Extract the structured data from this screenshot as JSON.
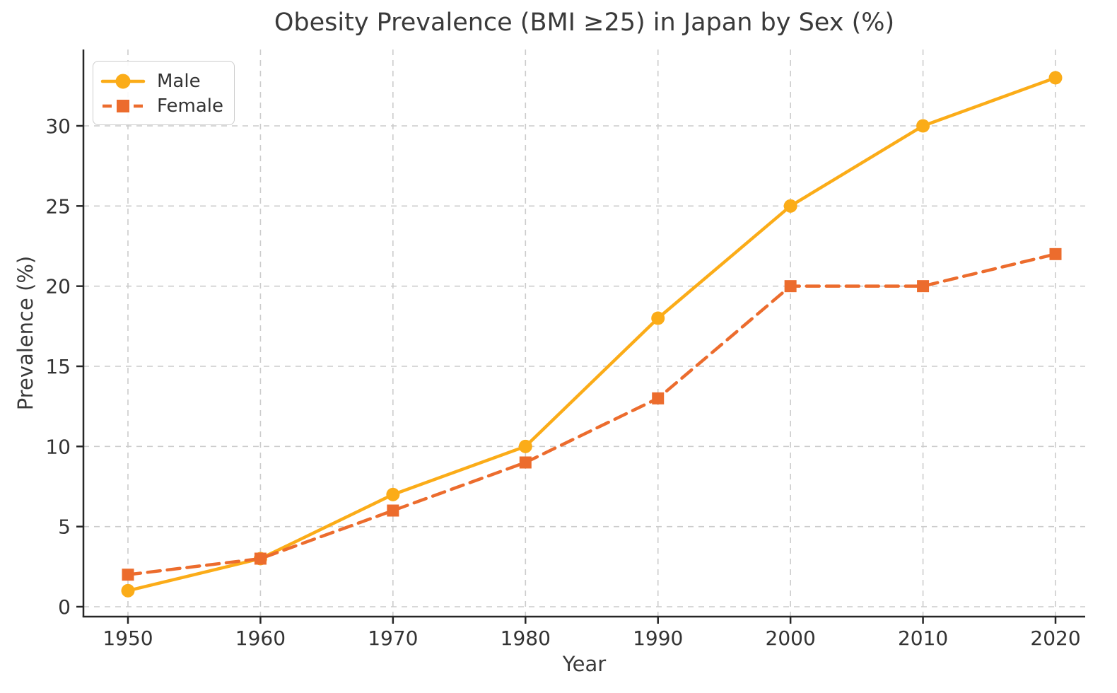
{
  "chart_data": {
    "type": "line",
    "title": "Obesity Prevalence (BMI ≥25) in Japan by Sex (%)",
    "xlabel": "Year",
    "ylabel": "Prevalence (%)",
    "categories": [
      "1950",
      "1960",
      "1970",
      "1980",
      "1990",
      "2000",
      "2010",
      "2020"
    ],
    "yticks": [
      0,
      5,
      10,
      15,
      20,
      25,
      30
    ],
    "ylim": [
      0,
      34.7
    ],
    "grid": true,
    "grid_style": "dashed",
    "legend_position": "upper left",
    "series": [
      {
        "name": "Male",
        "values": [
          1,
          3,
          7,
          10,
          18,
          25,
          30,
          33
        ],
        "color": "#FBAC18",
        "line_style": "solid",
        "marker": "circle"
      },
      {
        "name": "Female",
        "values": [
          2,
          3,
          6,
          9,
          13,
          20,
          20,
          22
        ],
        "color": "#EC6C2D",
        "line_style": "dashed",
        "marker": "square"
      }
    ],
    "colors": {
      "grid": "#cccccc",
      "spine": "#262626",
      "tick_label": "#333333",
      "title": "#3a3a3a",
      "background": "#ffffff"
    }
  }
}
